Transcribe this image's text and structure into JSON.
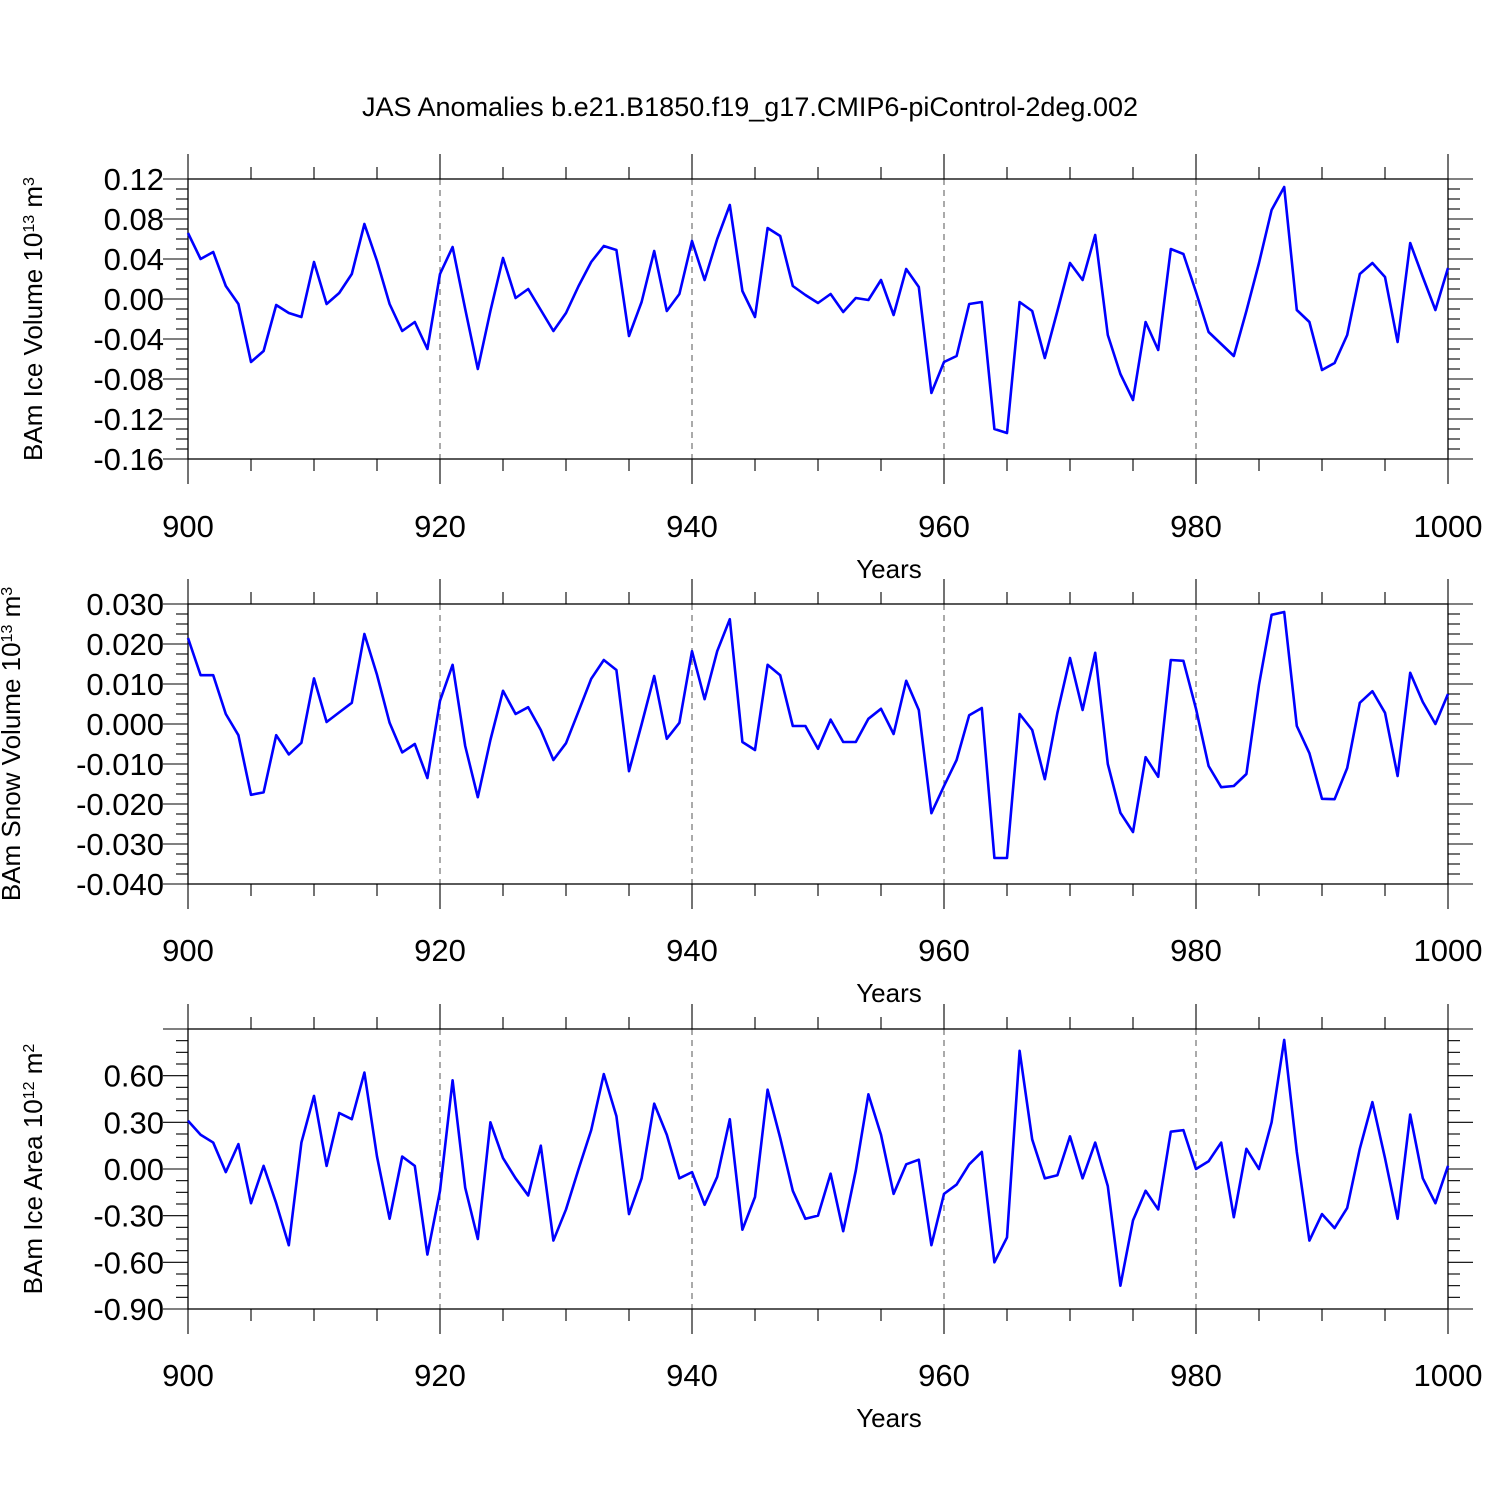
{
  "title": "JAS Anomalies b.e21.B1850.f19_g17.CMIP6-piControl-2deg.002",
  "chart_data": [
    {
      "type": "line",
      "ylabel": "BAm Ice Volume 10",
      "ylabel_exp": "13",
      "ylabel_unit": " m",
      "ylabel_unit_exp": "3",
      "xlabel": "Years",
      "xlim": [
        900,
        1000
      ],
      "ylim": [
        -0.16,
        0.12
      ],
      "yticks": [
        0.12,
        0.08,
        0.04,
        0.0,
        -0.04,
        -0.08,
        -0.12,
        -0.16
      ],
      "ytick_labels": [
        "0.12",
        "0.08",
        "0.04",
        "0.00",
        "-0.04",
        "-0.08",
        "-0.12",
        "-0.16"
      ],
      "xticks": [
        900,
        920,
        940,
        960,
        980,
        1000
      ],
      "xtick_labels": [
        "900",
        "920",
        "940",
        "960",
        "980",
        "1000"
      ],
      "color": "#0000ff",
      "x_start": 900,
      "values": [
        0.066,
        0.04,
        0.047,
        0.013,
        -0.005,
        -0.063,
        -0.052,
        -0.006,
        -0.014,
        -0.018,
        0.037,
        -0.005,
        0.006,
        0.025,
        0.075,
        0.038,
        -0.005,
        -0.032,
        -0.023,
        -0.05,
        0.025,
        0.052,
        -0.01,
        -0.07,
        -0.012,
        0.041,
        0.001,
        0.01,
        -0.011,
        -0.032,
        -0.014,
        0.013,
        0.037,
        0.053,
        0.049,
        -0.037,
        -0.003,
        0.048,
        -0.012,
        0.005,
        0.058,
        0.019,
        0.06,
        0.094,
        0.008,
        -0.018,
        0.071,
        0.063,
        0.013,
        0.004,
        -0.004,
        0.005,
        -0.013,
        0.001,
        -0.001,
        0.019,
        -0.016,
        0.03,
        0.012,
        -0.094,
        -0.063,
        -0.057,
        -0.005,
        -0.003,
        -0.13,
        -0.134,
        -0.003,
        -0.012,
        -0.059,
        -0.012,
        0.036,
        0.019,
        0.064,
        -0.036,
        -0.075,
        -0.101,
        -0.023,
        -0.051,
        0.05,
        0.045,
        0.007,
        -0.033,
        -0.045,
        -0.057,
        -0.012,
        0.036,
        0.089,
        0.112,
        -0.011,
        -0.023,
        -0.071,
        -0.064,
        -0.036,
        0.025,
        0.036,
        0.022,
        -0.043,
        0.056,
        0.022,
        -0.011,
        0.031
      ]
    },
    {
      "type": "line",
      "ylabel": "BAm Snow Volume 10",
      "ylabel_exp": "13",
      "ylabel_unit": " m",
      "ylabel_unit_exp": "3",
      "xlabel": "Years",
      "xlim": [
        900,
        1000
      ],
      "ylim": [
        -0.04,
        0.03
      ],
      "yticks": [
        0.03,
        0.02,
        0.01,
        0.0,
        -0.01,
        -0.02,
        -0.03,
        -0.04
      ],
      "ytick_labels": [
        "0.030",
        "0.020",
        "0.010",
        "0.000",
        "-0.010",
        "-0.020",
        "-0.030",
        "-0.040"
      ],
      "xticks": [
        900,
        920,
        940,
        960,
        980,
        1000
      ],
      "xtick_labels": [
        "900",
        "920",
        "940",
        "960",
        "980",
        "1000"
      ],
      "color": "#0000ff",
      "x_start": 900,
      "values": [
        0.0215,
        0.0122,
        0.0122,
        0.0025,
        -0.0028,
        -0.0177,
        -0.0171,
        -0.0028,
        -0.0076,
        -0.0047,
        0.0114,
        0.0005,
        0.0029,
        0.0053,
        0.0225,
        0.0123,
        0.0003,
        -0.0071,
        -0.005,
        -0.0135,
        0.0058,
        0.0148,
        -0.0055,
        -0.0183,
        -0.004,
        0.0083,
        0.0025,
        0.0042,
        -0.0015,
        -0.009,
        -0.0048,
        0.0032,
        0.0113,
        0.016,
        0.0135,
        -0.0118,
        -0.0001,
        0.012,
        -0.0037,
        0.0003,
        0.0182,
        0.0062,
        0.0182,
        0.0262,
        -0.0045,
        -0.0065,
        0.0148,
        0.0122,
        -0.0005,
        -0.0005,
        -0.0062,
        0.0011,
        -0.0045,
        -0.0045,
        0.0013,
        0.0038,
        -0.0025,
        0.0108,
        0.0035,
        -0.0223,
        -0.0155,
        -0.009,
        0.0022,
        0.004,
        -0.0335,
        -0.0335,
        0.0025,
        -0.0015,
        -0.0138,
        0.0028,
        0.0165,
        0.0035,
        0.0178,
        -0.01,
        -0.0222,
        -0.027,
        -0.0083,
        -0.0132,
        0.016,
        0.0158,
        0.0038,
        -0.0105,
        -0.0158,
        -0.0155,
        -0.0125,
        0.0098,
        0.0273,
        0.028,
        -0.0005,
        -0.0073,
        -0.0187,
        -0.0188,
        -0.011,
        0.0053,
        0.0082,
        0.0028,
        -0.013,
        0.0128,
        0.0055,
        0.0,
        0.0075
      ]
    },
    {
      "type": "line",
      "ylabel": "BAm Ice Area 10",
      "ylabel_exp": "12",
      "ylabel_unit": " m",
      "ylabel_unit_exp": "2",
      "xlabel": "Years",
      "xlim": [
        900,
        1000
      ],
      "ylim": [
        -0.9,
        0.9
      ],
      "yticks": [
        0.6,
        0.3,
        0.0,
        -0.3,
        -0.6,
        -0.9
      ],
      "ytick_labels": [
        "0.60",
        "0.30",
        "0.00",
        "-0.30",
        "-0.60",
        "-0.90"
      ],
      "xticks": [
        900,
        920,
        940,
        960,
        980,
        1000
      ],
      "xtick_labels": [
        "900",
        "920",
        "940",
        "960",
        "980",
        "1000"
      ],
      "color": "#0000ff",
      "x_start": 900,
      "values": [
        0.31,
        0.22,
        0.17,
        -0.02,
        0.16,
        -0.22,
        0.02,
        -0.22,
        -0.49,
        0.17,
        0.47,
        0.02,
        0.36,
        0.32,
        0.62,
        0.08,
        -0.32,
        0.08,
        0.02,
        -0.55,
        -0.14,
        0.57,
        -0.12,
        -0.45,
        0.3,
        0.07,
        -0.06,
        -0.17,
        0.15,
        -0.46,
        -0.26,
        0.0,
        0.25,
        0.61,
        0.34,
        -0.29,
        -0.06,
        0.42,
        0.22,
        -0.06,
        -0.02,
        -0.23,
        -0.05,
        0.32,
        -0.39,
        -0.18,
        0.51,
        0.2,
        -0.14,
        -0.32,
        -0.3,
        -0.03,
        -0.4,
        -0.01,
        0.48,
        0.22,
        -0.16,
        0.03,
        0.06,
        -0.49,
        -0.16,
        -0.1,
        0.03,
        0.11,
        -0.6,
        -0.44,
        0.76,
        0.19,
        -0.06,
        -0.04,
        0.21,
        -0.06,
        0.17,
        -0.11,
        -0.75,
        -0.33,
        -0.14,
        -0.26,
        0.24,
        0.25,
        0.0,
        0.05,
        0.17,
        -0.31,
        0.13,
        0.0,
        0.3,
        0.83,
        0.11,
        -0.46,
        -0.29,
        -0.38,
        -0.25,
        0.13,
        0.43,
        0.07,
        -0.32,
        0.35,
        -0.06,
        -0.22,
        0.02
      ]
    }
  ]
}
